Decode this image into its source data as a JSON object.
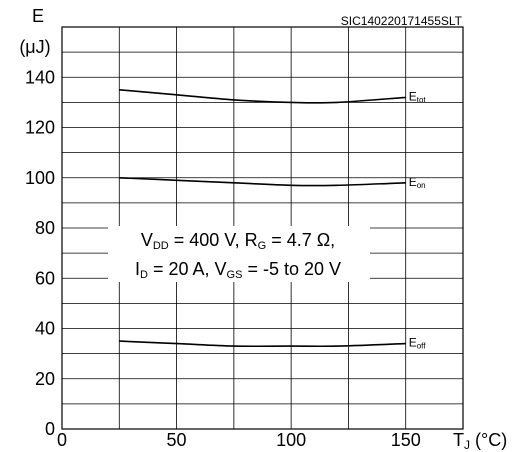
{
  "chart_data": {
    "type": "line",
    "tag": "SIC140220171455SLT",
    "y_axis": {
      "symbol": "E",
      "unit": "(μJ)",
      "ylim": [
        0,
        160
      ],
      "major_ticks": [
        0,
        20,
        40,
        60,
        80,
        100,
        120,
        140
      ],
      "minor_step": 10
    },
    "x_axis": {
      "symbol": "T",
      "subscript": "J",
      "unit": " (°C)",
      "xlim": [
        0,
        175
      ],
      "major_ticks": [
        0,
        50,
        100,
        150
      ],
      "minor_step": 25
    },
    "conditions": {
      "line1": [
        {
          "text": "V",
          "sub": false
        },
        {
          "text": "DD",
          "sub": true
        },
        {
          "text": " = 400 V, R",
          "sub": false
        },
        {
          "text": "G",
          "sub": true
        },
        {
          "text": " = 4.7 Ω,",
          "sub": false
        }
      ],
      "line2": [
        {
          "text": "I",
          "sub": false
        },
        {
          "text": "D",
          "sub": true
        },
        {
          "text": " = 20 A, V",
          "sub": false
        },
        {
          "text": "GS",
          "sub": true
        },
        {
          "text": " = -5 to 20 V",
          "sub": false
        }
      ]
    },
    "series": [
      {
        "name": "E",
        "name_sub": "tot",
        "x": [
          25,
          50,
          75,
          100,
          120,
          150
        ],
        "y": [
          135,
          133,
          131,
          130,
          130,
          132
        ]
      },
      {
        "name": "E",
        "name_sub": "on",
        "x": [
          25,
          50,
          75,
          100,
          120,
          150
        ],
        "y": [
          100,
          99,
          98,
          97,
          97,
          98
        ]
      },
      {
        "name": "E",
        "name_sub": "off",
        "x": [
          25,
          50,
          75,
          100,
          120,
          150
        ],
        "y": [
          35,
          34,
          33,
          33,
          33,
          34
        ]
      }
    ],
    "grid": true,
    "legend": "inline labels at right end of each line"
  }
}
